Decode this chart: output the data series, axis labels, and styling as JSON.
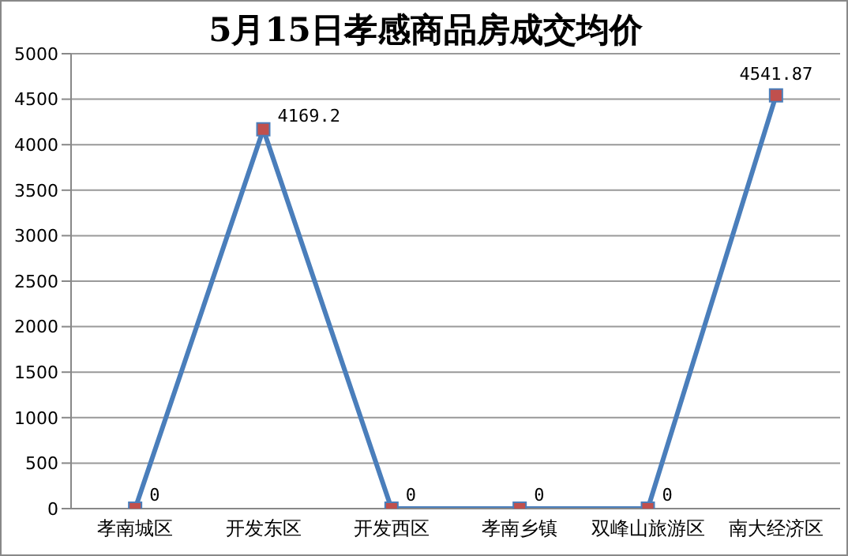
{
  "chart_data": {
    "type": "line",
    "title": "5月15日孝感商品房成交均价",
    "categories": [
      "孝南城区",
      "开发东区",
      "开发西区",
      "孝南乡镇",
      "双峰山旅游区",
      "南大经济区"
    ],
    "series": [
      {
        "color": "#4a7ebb",
        "values": [
          0,
          4169.2,
          0,
          0,
          0,
          4541.87
        ],
        "colors": [
          "#c0504d",
          "#c0504d",
          "#c0504d",
          "#c0504d",
          "#c0504d",
          "#c0504d"
        ]
      }
    ],
    "ylim": [
      0,
      5000
    ],
    "yticks": [
      0,
      500,
      1000,
      1500,
      2000,
      2500,
      3000,
      3500,
      4000,
      4500,
      5000
    ],
    "grid": "y",
    "marker": "square",
    "line_style": "solid",
    "data_labels": true
  }
}
